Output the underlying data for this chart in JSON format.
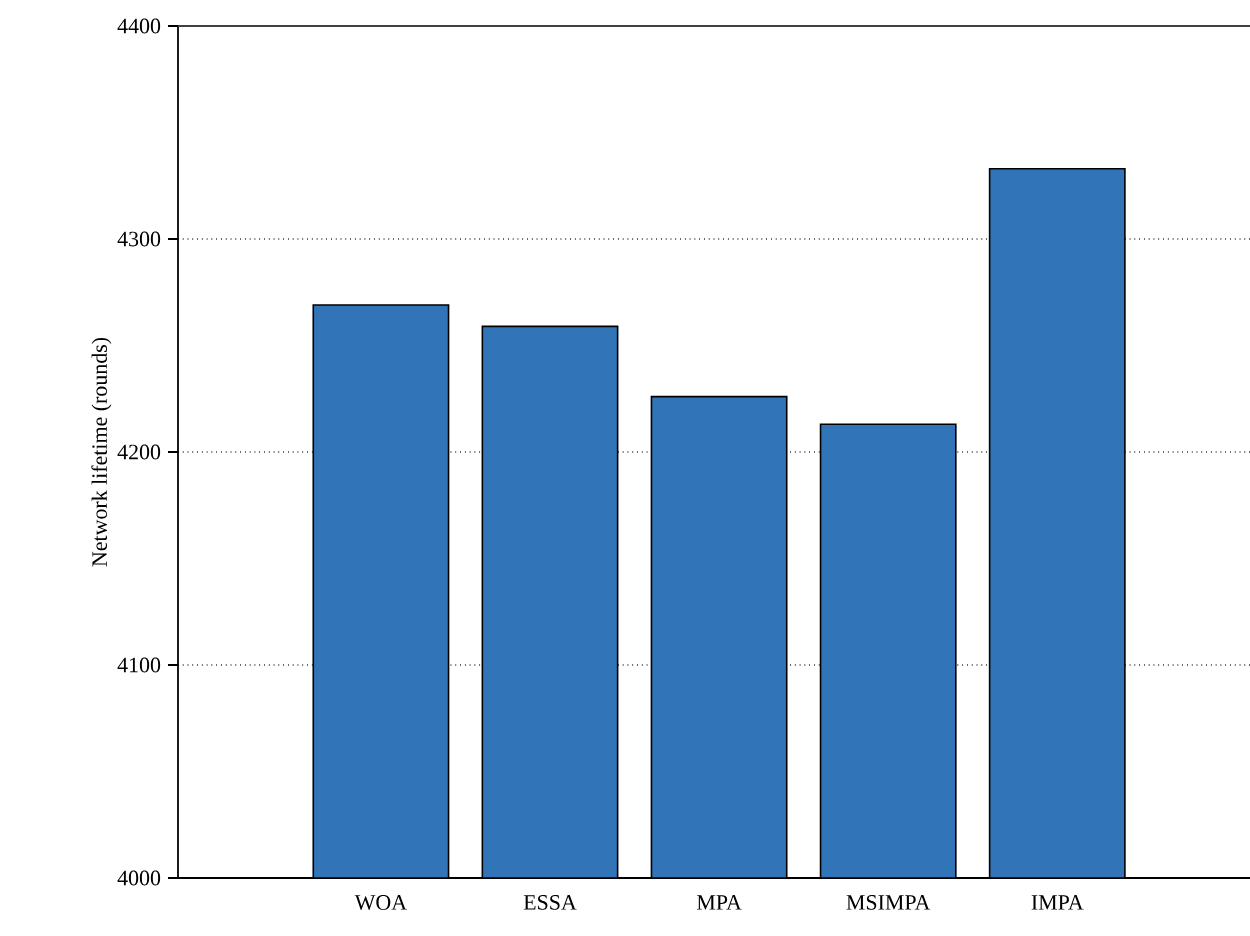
{
  "chart_data": {
    "type": "bar",
    "ylabel": "Network lifetime (rounds)",
    "categories": [
      "WOA",
      "ESSA",
      "MPA",
      "MSIMPA",
      "IMPA"
    ],
    "values": [
      4269,
      4259,
      4226,
      4213,
      4333
    ],
    "color": "#3174b8",
    "ylim": [
      4000,
      4400
    ],
    "yticks": [
      4000,
      4100,
      4200,
      4300,
      4400
    ],
    "grid": "y"
  }
}
